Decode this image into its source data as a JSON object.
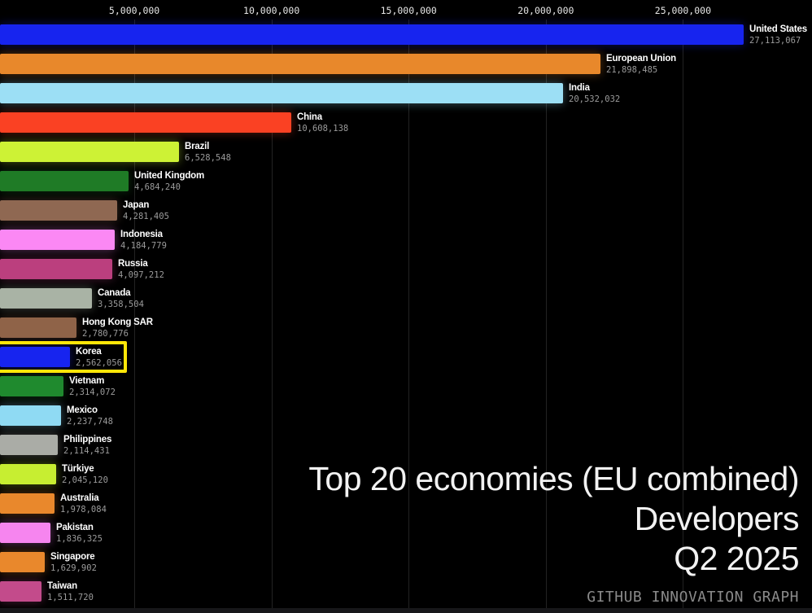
{
  "chart_data": {
    "type": "bar",
    "orientation": "horizontal",
    "title_lines": [
      "Top 20 economies (EU combined)",
      "Developers",
      "Q2 2025"
    ],
    "source": "GITHUB INNOVATION GRAPH",
    "axis": {
      "position": "top",
      "tick_values": [
        5000000,
        10000000,
        15000000,
        20000000,
        25000000
      ],
      "tick_labels": [
        "5,000,000",
        "10,000,000",
        "15,000,000",
        "20,000,000",
        "25,000,000"
      ],
      "xlim": [
        0,
        29600000
      ],
      "grid": true
    },
    "categories": [
      "United States",
      "European Union",
      "India",
      "China",
      "Brazil",
      "United Kingdom",
      "Japan",
      "Indonesia",
      "Russia",
      "Canada",
      "Hong Kong SAR",
      "Korea",
      "Vietnam",
      "Mexico",
      "Philippines",
      "Türkiye",
      "Australia",
      "Pakistan",
      "Singapore",
      "Taiwan"
    ],
    "values": [
      27113067,
      21898485,
      20532032,
      10608138,
      6528548,
      4684240,
      4281405,
      4184779,
      4097212,
      3358504,
      2780776,
      2562056,
      2314072,
      2237748,
      2114431,
      2045120,
      1978084,
      1836325,
      1629902,
      1511720
    ],
    "value_labels": [
      "27,113,067",
      "21,898,485",
      "20,532,032",
      "10,608,138",
      "6,528,548",
      "4,684,240",
      "4,281,405",
      "4,184,779",
      "4,097,212",
      "3,358,504",
      "2,780,776",
      "2,562,056",
      "2,314,072",
      "2,237,748",
      "2,114,431",
      "2,045,120",
      "1,978,084",
      "1,836,325",
      "1,629,902",
      "1,511,720"
    ],
    "colors": [
      "#1724ef",
      "#e8882b",
      "#9cdff5",
      "#fa4123",
      "#cdf235",
      "#1f7b26",
      "#8f6852",
      "#fb88f4",
      "#bb3f7e",
      "#a9b3a5",
      "#8f6348",
      "#1724ef",
      "#1f8a2e",
      "#8fdaf3",
      "#aaaca6",
      "#c7ee31",
      "#e9882c",
      "#f685ef",
      "#e9882c",
      "#c34b8b"
    ],
    "highlight": {
      "category": "Korea",
      "index": 11,
      "border_color": "#ffe608"
    }
  },
  "ui": {
    "background": "#000000",
    "grid_color": "#232323",
    "axis_text_color": "#e6e6e6",
    "name_text_color": "#ffffff",
    "value_text_color": "#9b9b9b",
    "title_text_color": "#f2f2f2",
    "source_text_color": "#8a8a8a",
    "footer_strip_color": "#17171a"
  }
}
